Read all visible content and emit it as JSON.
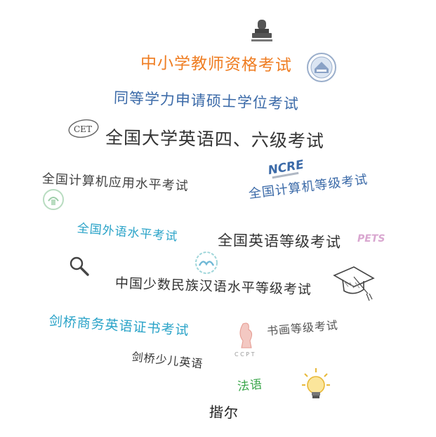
{
  "colors": {
    "orange": "#ef7d22",
    "blue": "#3b6aa8",
    "dark": "#333333",
    "teal": "#2aa3c8",
    "green": "#3aa64a"
  },
  "items": {
    "teacher_exam": "中小学教师资格考试",
    "equivalent_degree_exam": "同等学力申请硕士学位考试",
    "cet_exam": "全国大学英语四、六级考试",
    "computer_level_exam_a": "全国计算机应用水平考试",
    "computer_rank_exam": "全国计算机等级考试",
    "foreign_lang_exam": "全国外语水平考试",
    "pets_exam": "全国英语等级考试",
    "minority_chinese_exam": "中国少数民族汉语水平等级考试",
    "cambridge_business": "剑桥商务英语证书考试",
    "calligraphy_exam": "书画等级考试",
    "cambridge_young": "剑桥少儿英语",
    "french": "法语",
    "bonjour": "揩尔"
  },
  "logos": {
    "cet": "CET",
    "ncre": "NCRE",
    "pets": "PETS",
    "ccpt": "C C P T"
  },
  "icons": {
    "stamp": "stamp-icon",
    "badge": "badge-icon",
    "magnifier": "magnifier-icon",
    "graduation_cap": "graduation-cap-icon",
    "light_bulb": "light-bulb-icon"
  }
}
